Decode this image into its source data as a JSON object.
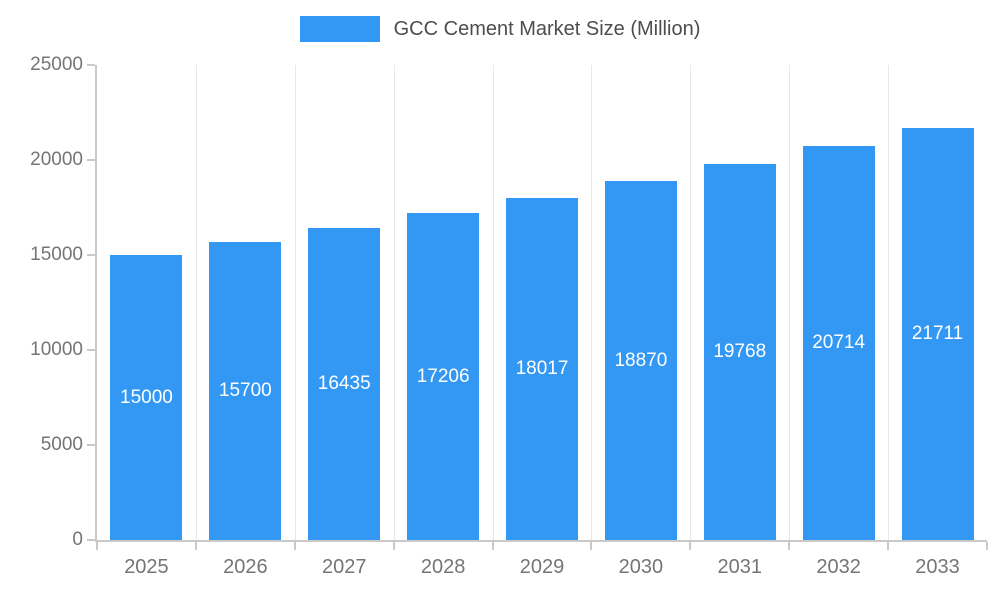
{
  "legend": {
    "label": "GCC Cement Market Size (Million)",
    "swatch_color": "#3398f4"
  },
  "chart_data": {
    "type": "bar",
    "title": "GCC Cement Market Size (Million)",
    "categories": [
      "2025",
      "2026",
      "2027",
      "2028",
      "2029",
      "2030",
      "2031",
      "2032",
      "2033"
    ],
    "values": [
      15000,
      15700,
      16435,
      17206,
      18017,
      18870,
      19768,
      20714,
      21711
    ],
    "series_name": "GCC Cement Market Size (Million)",
    "xlabel": "",
    "ylabel": "",
    "ylim": [
      0,
      25000
    ],
    "yticks": [
      0,
      5000,
      10000,
      15000,
      20000,
      25000
    ],
    "bar_color": "#3398f4",
    "value_label_color": "#ffffff",
    "tick_label_color": "#757575",
    "axis_color": "#c9c9c9",
    "grid": "vertical-category-separators",
    "legend_position": "top-center",
    "value_labels": "inside-center-white"
  }
}
